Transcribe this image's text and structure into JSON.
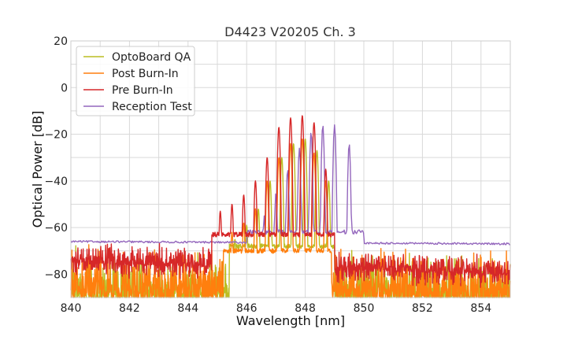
{
  "chart_data": {
    "type": "line",
    "title": "D4423 V20205 Ch. 3",
    "xlabel": "Wavelength [nm]",
    "ylabel": "Optical Power [dB]",
    "xlim": [
      840,
      855
    ],
    "ylim": [
      -90,
      20
    ],
    "xticks": [
      840,
      842,
      844,
      846,
      848,
      850,
      852,
      854
    ],
    "yticks": [
      -80,
      -60,
      -40,
      -20,
      0,
      20
    ],
    "xtick_labels": [
      "840",
      "842",
      "844",
      "846",
      "848",
      "850",
      "852",
      "854"
    ],
    "ytick_labels": [
      "−80",
      "−60",
      "−40",
      "−20",
      "0",
      "20"
    ],
    "grid": true,
    "legend_position": "top-left",
    "series": [
      {
        "name": "OptoBoard QA",
        "color": "#bcbd22",
        "floor_db": -84,
        "noise_db": 14,
        "floor_right_db": -86,
        "peaks": [
          {
            "x": 845.6,
            "y": -65
          },
          {
            "x": 846.0,
            "y": -59
          },
          {
            "x": 846.4,
            "y": -52
          },
          {
            "x": 846.8,
            "y": -40
          },
          {
            "x": 847.2,
            "y": -30
          },
          {
            "x": 847.6,
            "y": -24
          },
          {
            "x": 848.0,
            "y": -22
          },
          {
            "x": 848.4,
            "y": -27
          },
          {
            "x": 848.8,
            "y": -40
          }
        ],
        "band_db": -68,
        "band_range": [
          845.4,
          849.0
        ]
      },
      {
        "name": "Post Burn-In",
        "color": "#ff7f0e",
        "floor_db": -83,
        "noise_db": 14,
        "floor_right_db": -85,
        "peaks": [
          {
            "x": 845.5,
            "y": -62
          },
          {
            "x": 845.9,
            "y": -58
          },
          {
            "x": 846.3,
            "y": -52
          },
          {
            "x": 846.7,
            "y": -40
          },
          {
            "x": 847.1,
            "y": -30
          },
          {
            "x": 847.5,
            "y": -24
          },
          {
            "x": 847.9,
            "y": -22
          },
          {
            "x": 848.3,
            "y": -28
          },
          {
            "x": 848.7,
            "y": -40
          }
        ],
        "band_db": -70,
        "band_range": [
          845.2,
          848.9
        ]
      },
      {
        "name": "Pre Burn-In",
        "color": "#d62728",
        "floor_db": -73,
        "noise_db": 6,
        "floor_right_db": -78,
        "peaks": [
          {
            "x": 845.1,
            "y": -53
          },
          {
            "x": 845.5,
            "y": -50
          },
          {
            "x": 845.9,
            "y": -46
          },
          {
            "x": 846.3,
            "y": -40
          },
          {
            "x": 846.7,
            "y": -30
          },
          {
            "x": 847.1,
            "y": -17
          },
          {
            "x": 847.5,
            "y": -13
          },
          {
            "x": 847.9,
            "y": -12
          },
          {
            "x": 848.3,
            "y": -15
          },
          {
            "x": 848.7,
            "y": -35
          }
        ],
        "band_db": -63,
        "band_range": [
          844.8,
          849.0
        ]
      },
      {
        "name": "Reception Test",
        "color": "#9467bd",
        "floor_db": -66,
        "noise_db": 0.4,
        "floor_right_db": -67,
        "peaks": [
          {
            "x": 846.2,
            "y": -63
          },
          {
            "x": 846.6,
            "y": -55
          },
          {
            "x": 847.0,
            "y": -45
          },
          {
            "x": 847.4,
            "y": -35
          },
          {
            "x": 847.8,
            "y": -26
          },
          {
            "x": 848.2,
            "y": -19
          },
          {
            "x": 848.6,
            "y": -16
          },
          {
            "x": 849.0,
            "y": -16
          },
          {
            "x": 849.5,
            "y": -24
          }
        ],
        "band_db": -62,
        "band_range": [
          846.0,
          850.0
        ]
      }
    ]
  }
}
